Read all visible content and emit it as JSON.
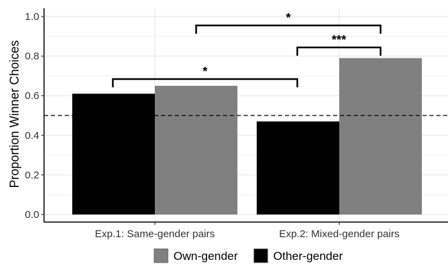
{
  "chart_data": {
    "type": "bar",
    "categories": [
      "Exp.1: Same-gender pairs",
      "Exp.2: Mixed-gender pairs"
    ],
    "series": [
      {
        "name": "Other-gender",
        "color": "#000000",
        "values": [
          0.61,
          0.47
        ]
      },
      {
        "name": "Own-gender",
        "color": "#808080",
        "values": [
          0.65,
          0.79
        ]
      }
    ],
    "legend": {
      "position": "bottom",
      "entries": [
        "Own-gender",
        "Other-gender"
      ]
    },
    "ylabel": "Proportion Winner Choices",
    "xlabel": "",
    "ylim": [
      0,
      1.0
    ],
    "yticks": [
      0.0,
      0.2,
      0.4,
      0.6,
      0.8,
      1.0
    ],
    "ytick_labels": [
      "0.0",
      "0.2",
      "0.4",
      "0.6",
      "0.8",
      "1.0"
    ],
    "reference_line": {
      "y": 0.5,
      "style": "dashed"
    },
    "grid": true,
    "annotations": [
      {
        "label": "*",
        "from": "Exp.1: Same-gender pairs / Other-gender",
        "to": "Exp.2: Mixed-gender pairs / Other-gender"
      },
      {
        "label": "***",
        "from": "Exp.2: Mixed-gender pairs / Other-gender",
        "to": "Exp.2: Mixed-gender pairs / Own-gender"
      },
      {
        "label": "*",
        "from": "Exp.1: Same-gender pairs / Own-gender",
        "to": "Exp.2: Mixed-gender pairs / Own-gender"
      }
    ]
  }
}
